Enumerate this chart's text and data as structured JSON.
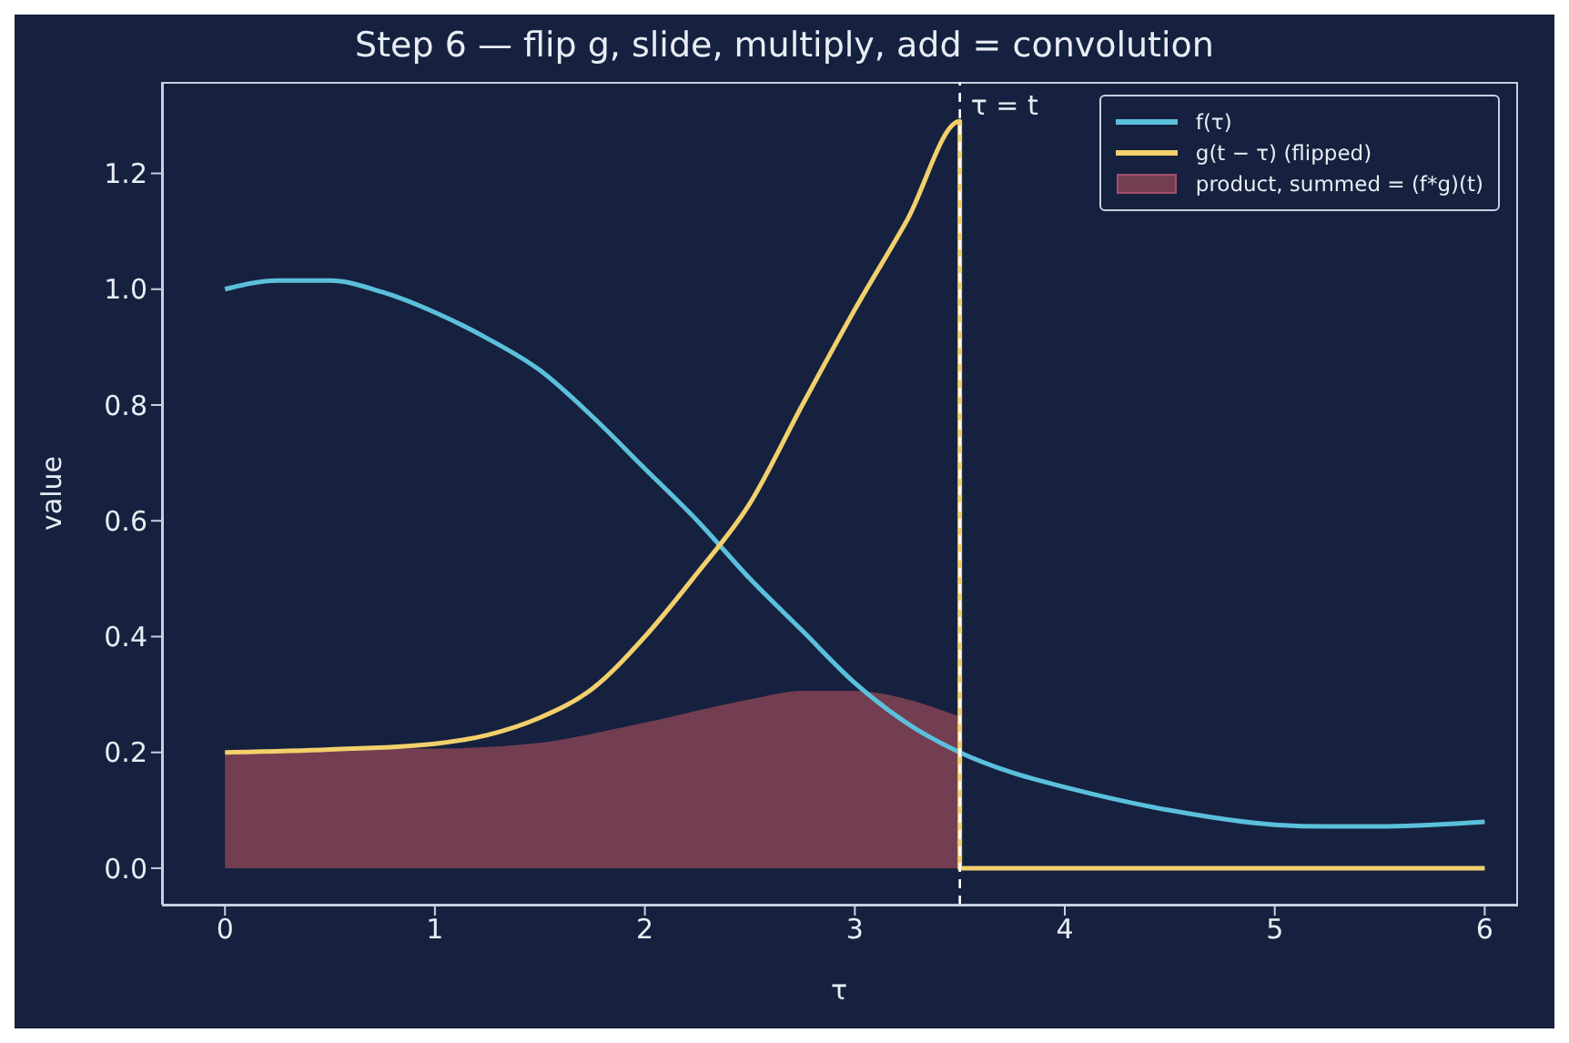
{
  "chart_data": {
    "type": "line",
    "title": "Step 6 — flip g, slide, multiply, add = convolution",
    "xlabel": "τ",
    "ylabel": "value",
    "xlim": [
      -0.3,
      6.15
    ],
    "ylim": [
      -0.063,
      1.358
    ],
    "xticks": [
      0,
      1,
      2,
      3,
      4,
      5,
      6
    ],
    "yticks": [
      {
        "value": 0,
        "label": "0.0"
      },
      {
        "value": 0.2,
        "label": "0.2"
      },
      {
        "value": 0.4,
        "label": "0.4"
      },
      {
        "value": 0.6,
        "label": "0.6"
      },
      {
        "value": 0.8,
        "label": "0.8"
      },
      {
        "value": 1,
        "label": "1.0"
      },
      {
        "value": 1.2,
        "label": "1.2"
      }
    ],
    "grid": false,
    "legend": "top right",
    "ref_lines": [
      {
        "axis": "x",
        "value": 3.5,
        "label": "τ = t",
        "color": "#ffffff",
        "line_style": "dashed"
      }
    ],
    "series": [
      {
        "name": "f(τ)",
        "color": "#5bc0dc",
        "x": [
          0,
          0.25,
          0.5,
          0.75,
          1,
          1.25,
          1.5,
          1.75,
          2,
          2.25,
          2.5,
          2.75,
          3,
          3.25,
          3.5,
          3.75,
          4,
          4.5,
          5,
          5.25,
          5.5,
          6
        ],
        "values": [
          1.0,
          1.015,
          1.015,
          0.995,
          0.96,
          0.915,
          0.86,
          0.78,
          0.69,
          0.6,
          0.5,
          0.41,
          0.32,
          0.25,
          0.2,
          0.165,
          0.14,
          0.1,
          0.075,
          0.072,
          0.072,
          0.08
        ]
      },
      {
        "name": "g(t − τ) (flipped)",
        "color": "#f2d06b",
        "x": [
          0,
          0.5,
          1,
          1.25,
          1.5,
          1.75,
          2,
          2.25,
          2.5,
          2.75,
          3,
          3.25,
          3.5,
          3.5,
          6
        ],
        "values": [
          0.2,
          0.205,
          0.215,
          0.23,
          0.26,
          0.31,
          0.4,
          0.51,
          0.63,
          0.8,
          0.965,
          1.12,
          1.29,
          0,
          0
        ]
      },
      {
        "name": "product, summed = (f*g)(t)",
        "type": "area",
        "color": "#733e51",
        "x": [
          0,
          0.5,
          1,
          1.5,
          2,
          2.5,
          2.75,
          3,
          3.25,
          3.5
        ],
        "values": [
          0.2,
          0.205,
          0.205,
          0.215,
          0.25,
          0.29,
          0.305,
          0.305,
          0.29,
          0.26
        ]
      }
    ]
  }
}
